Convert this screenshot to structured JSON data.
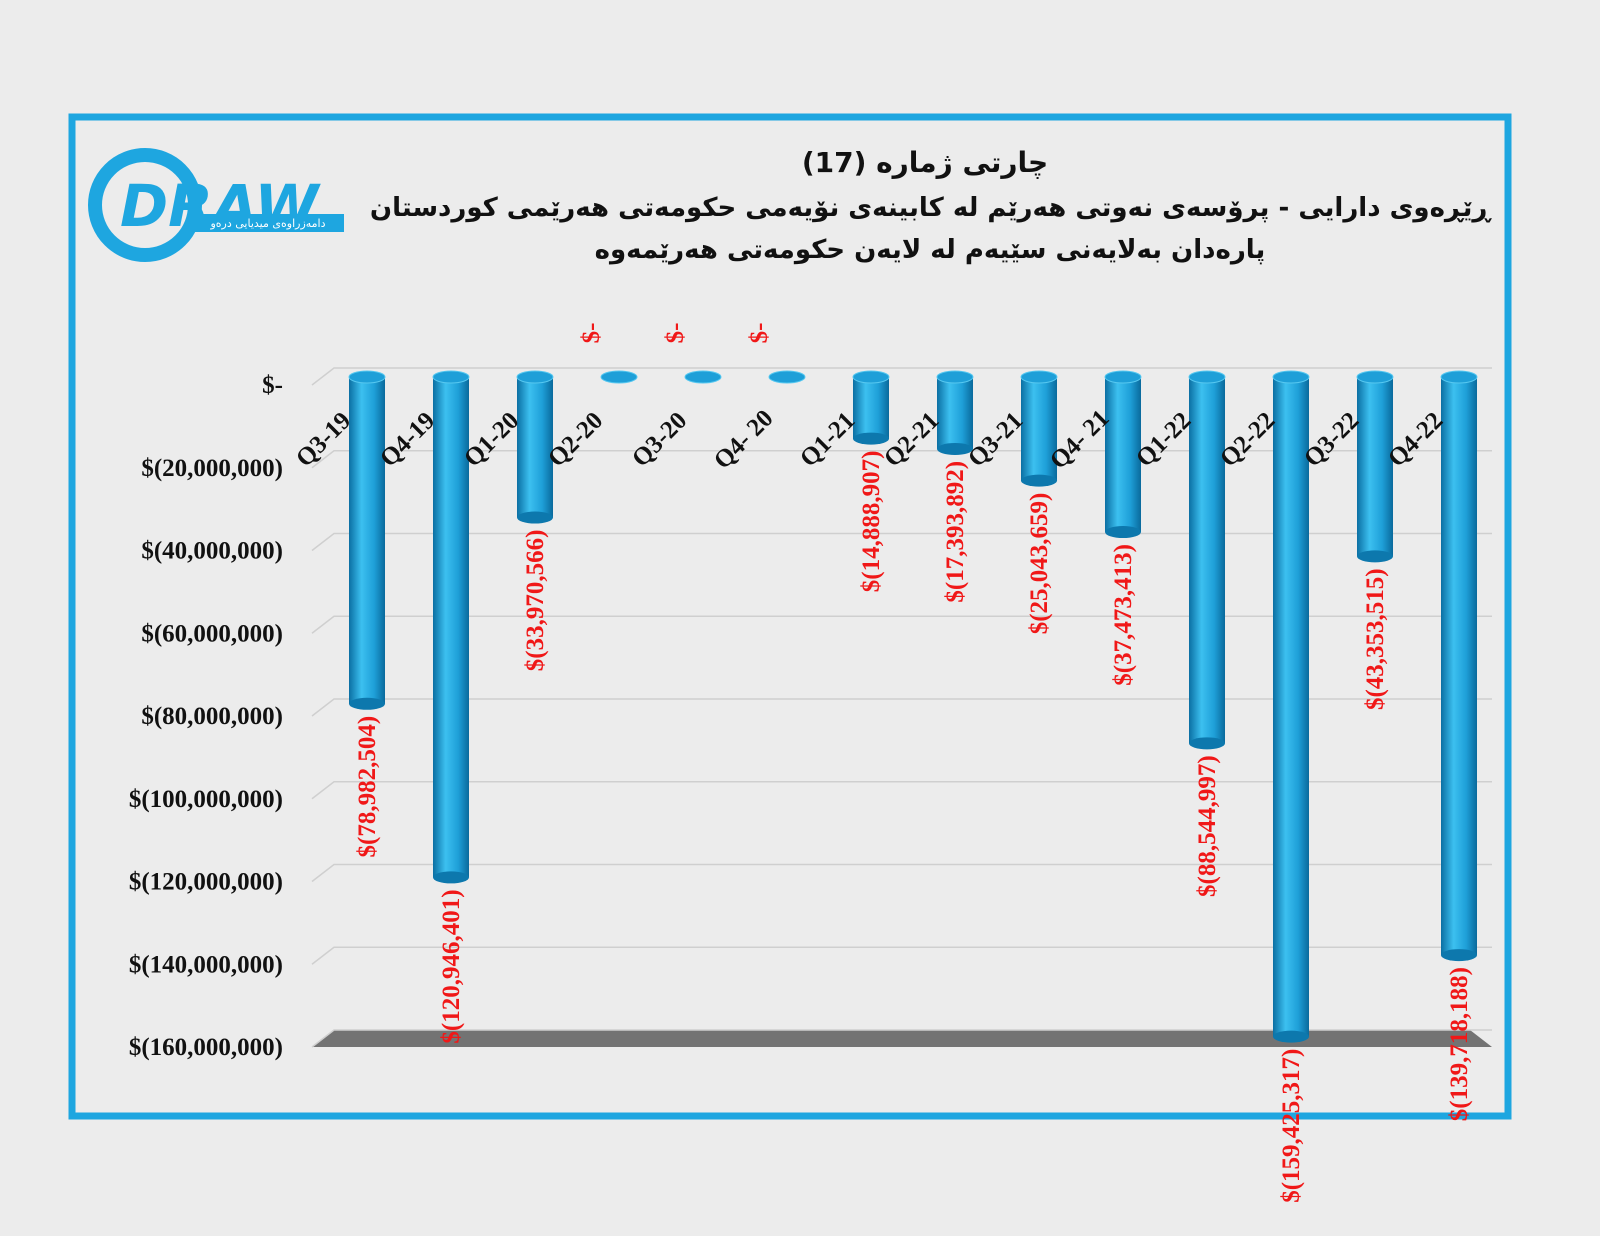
{
  "logo": {
    "text": "DRAW",
    "tagline": "دامەزراوەی میدیایی درەو"
  },
  "chart_data": {
    "type": "bar",
    "title": "چارتی ژمارە (17)",
    "subtitle": [
      "ڕێڕەوی دارایی - پرۆسەی نەوتی هەرێم لە کابینەی نۆیەمی حکومەتی هەرێمی کوردستان",
      "پارەدان بەلایەنی سێیەم لە لایەن حکومەتی هەرێمەوە"
    ],
    "categories": [
      "Q3-19",
      "Q4-19",
      "Q1-20",
      "Q2-20",
      "Q3-20",
      "Q4- 20",
      "Q1-21",
      "Q2-21",
      "Q3-21",
      "Q4- 21",
      "Q1-22",
      "Q2-22",
      "Q3-22",
      "Q4-22"
    ],
    "values": [
      -78982504,
      -120946401,
      -33970566,
      0,
      0,
      0,
      -14888907,
      -17393892,
      -25043659,
      -37473413,
      -88544997,
      -159425317,
      -43353515,
      -139718188
    ],
    "value_labels": [
      "$(78,982,504)",
      "$(120,946,401)",
      "$(33,970,566)",
      "$-",
      "$-",
      "$-",
      "$(14,888,907)",
      "$(17,393,892)",
      "$(25,043,659)",
      "$(37,473,413)",
      "$(88,544,997)",
      "$(159,425,317)",
      "$(43,353,515)",
      "$(139,718,188)"
    ],
    "color": "#1e9fd8",
    "ylim": [
      -160000000,
      0
    ],
    "yticks": [
      {
        "value": 0,
        "label": "$-"
      },
      {
        "value": -20000000,
        "label": "$(20,000,000)"
      },
      {
        "value": -40000000,
        "label": "$(40,000,000)"
      },
      {
        "value": -60000000,
        "label": "$(60,000,000)"
      },
      {
        "value": -80000000,
        "label": "$(80,000,000)"
      },
      {
        "value": -100000000,
        "label": "$(100,000,000)"
      },
      {
        "value": -120000000,
        "label": "$(120,000,000)"
      },
      {
        "value": -140000000,
        "label": "$(140,000,000)"
      },
      {
        "value": -160000000,
        "label": "$(160,000,000)"
      }
    ],
    "grid": true
  }
}
